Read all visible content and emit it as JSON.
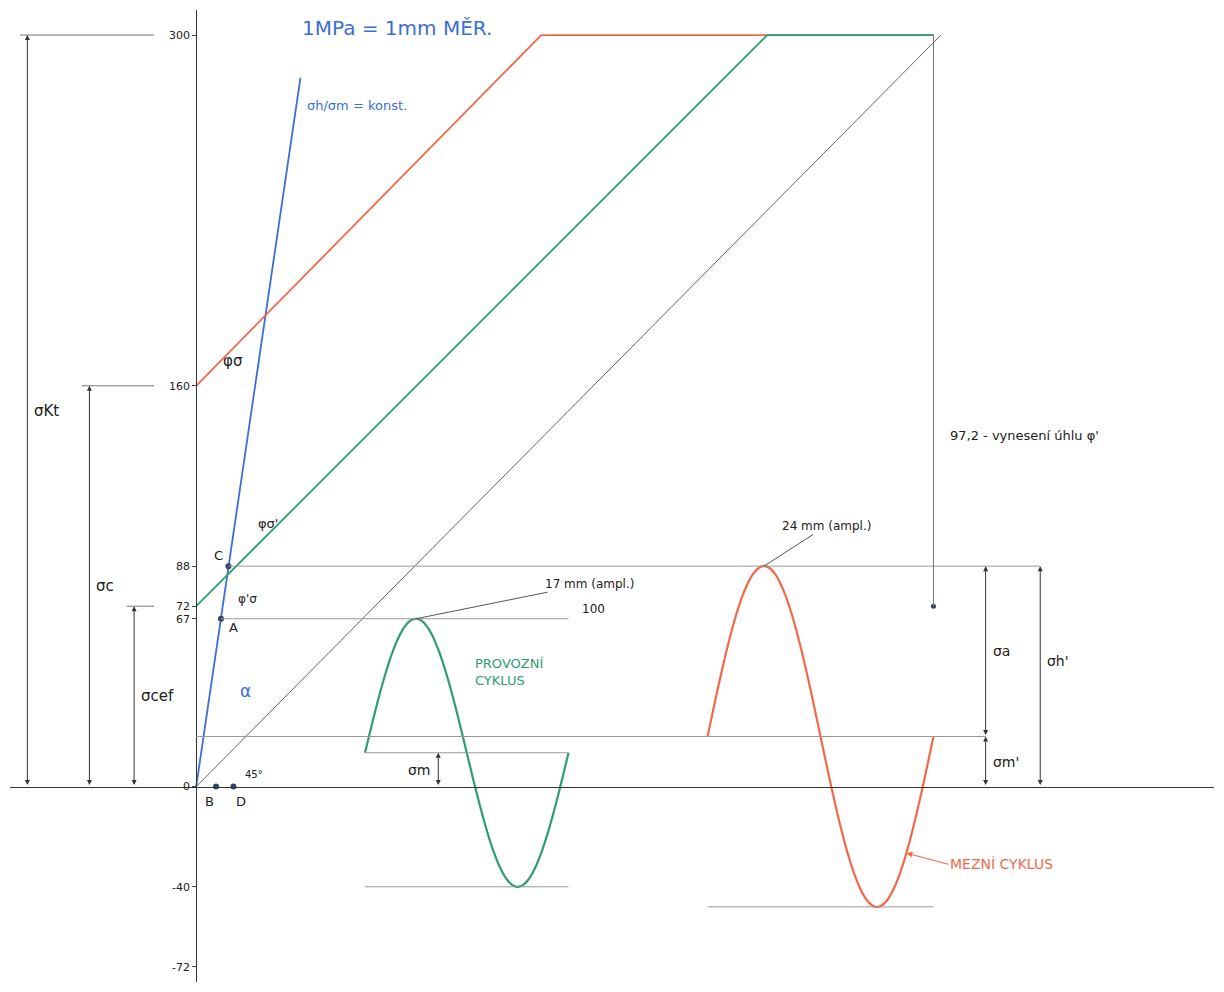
{
  "chart_data": {
    "type": "line",
    "title": "1MPa = 1mm MĚR.",
    "xlim": [
      -75,
      410
    ],
    "ylim": [
      -78,
      310
    ],
    "yticks": [
      -72,
      -40,
      0,
      67,
      72,
      88,
      160,
      300
    ],
    "tick_labels": "y",
    "grid": false,
    "series": [
      {
        "name": "σh/σm = konst.",
        "color": "#3b6fd6",
        "x": [
          0,
          42
        ],
        "values": [
          0,
          283
        ]
      },
      {
        "color": "#f2694a",
        "x": [
          0,
          139,
          297
        ],
        "values": [
          160,
          300,
          300
        ]
      },
      {
        "color": "#2e9e6e",
        "x": [
          0,
          230,
          297
        ],
        "values": [
          72,
          300,
          300
        ]
      },
      {
        "color": "#666666",
        "x": [
          0,
          300
        ],
        "values": [
          0,
          300
        ]
      }
    ],
    "points": [
      {
        "label": "C",
        "x": 13,
        "y": 88
      },
      {
        "label": "A",
        "x": 10,
        "y": 67
      },
      {
        "label": "B",
        "x": 8,
        "y": 0
      },
      {
        "label": "D",
        "x": 15,
        "y": 0
      }
    ],
    "dimensions": [
      {
        "label": "σKt",
        "from": 0,
        "to": 300
      },
      {
        "label": "σc",
        "from": 0,
        "to": 160
      },
      {
        "label": "σcef",
        "from": 0,
        "to": 72
      }
    ],
    "cycles": [
      {
        "name": "PROVOZNÍ CYKLUS",
        "color": "#2e9e6e",
        "x": [
          68,
          150
        ],
        "mean": 13.5,
        "amplitude": 53.5,
        "mean_label": "σm",
        "note": "17 mm (ampl.)"
      },
      {
        "name": "MEZNÍ CYKLUS",
        "color": "#f2694a",
        "x": [
          206,
          297
        ],
        "mean": 20,
        "amplitude": 68,
        "mean_label": "σm'",
        "amplitude_label": "σa",
        "max_label": "σh'",
        "note": "24 mm (ampl.)"
      }
    ],
    "labels": [
      "φσ",
      "φσ'",
      "φ'σ",
      "α",
      "45°",
      "100",
      "97,2 - vynesení úhlu φ'"
    ]
  }
}
